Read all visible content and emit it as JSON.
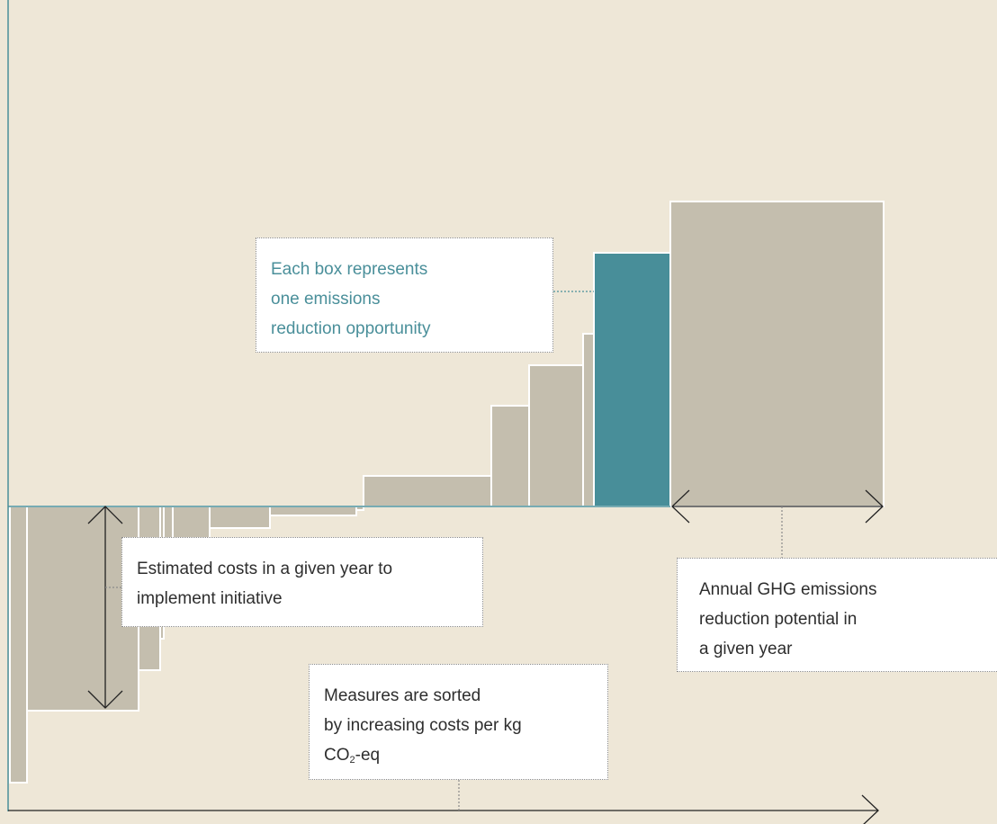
{
  "colors": {
    "background": "#EEE7D7",
    "box_fill": "#C4BEAE",
    "box_stroke": "#FFFFFF",
    "highlight_fill": "#488E99",
    "axis": "#4A8F9A",
    "arrow": "#222222",
    "callout_highlight_text": "#4A8F9A",
    "callout_text": "#2E2E2E"
  },
  "callouts": {
    "box": {
      "line1": "Each box represents",
      "line2": "one emissions",
      "line3": "reduction opportunity"
    },
    "costs": {
      "line1": "Estimated costs in a given year to",
      "line2": "implement initiative"
    },
    "potential": {
      "line1": "Annual GHG emissions",
      "line2": "reduction potential in",
      "line3": "a given year"
    },
    "sorted": {
      "line1": "Measures are sorted",
      "line2": "by increasing costs per kg",
      "line3_prefix": "CO",
      "line3_sub": "2",
      "line3_suffix": "-eq"
    }
  }
}
